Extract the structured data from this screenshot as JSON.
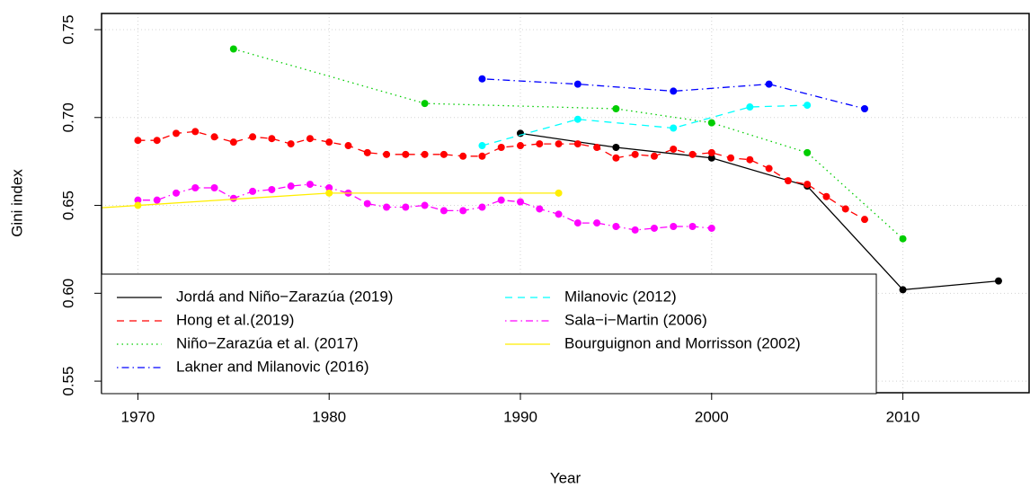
{
  "chart_data": {
    "type": "line",
    "x_label": "Year",
    "y_label": "Gini index",
    "xlim": [
      1968.1,
      2016.6
    ],
    "ylim": [
      0.5434,
      0.7592
    ],
    "xticks": [
      1970,
      1980,
      1990,
      2000,
      2010
    ],
    "yticks": [
      0.55,
      {
        "value": 0.6,
        "label": "0.60"
      },
      0.65,
      {
        "value": 0.7,
        "label": "0.70"
      },
      0.75
    ],
    "grid": true,
    "legend": "bottomleft",
    "series": [
      {
        "name": "Jordá and Niño−Zarazúa (2019)",
        "color": "#000000",
        "linestyle": "solid",
        "x": [
          1990,
          1995,
          2000,
          2005,
          2010,
          2015
        ],
        "values": [
          0.691,
          0.683,
          0.677,
          0.661,
          0.602,
          0.607
        ]
      },
      {
        "name": "Hong et al.(2019)",
        "color": "#ff0000",
        "linestyle": "dashed",
        "x": [
          1970,
          1971,
          1972,
          1973,
          1974,
          1975,
          1976,
          1977,
          1978,
          1979,
          1980,
          1981,
          1982,
          1983,
          1984,
          1985,
          1986,
          1987,
          1988,
          1989,
          1990,
          1991,
          1992,
          1993,
          1994,
          1995,
          1996,
          1997,
          1998,
          1999,
          2000,
          2001,
          2002,
          2003,
          2004,
          2005,
          2006,
          2007,
          2008
        ],
        "values": [
          0.687,
          0.687,
          0.691,
          0.692,
          0.689,
          0.686,
          0.689,
          0.688,
          0.685,
          0.688,
          0.686,
          0.684,
          0.68,
          0.679,
          0.679,
          0.679,
          0.679,
          0.678,
          0.678,
          0.683,
          0.684,
          0.685,
          0.685,
          0.685,
          0.683,
          0.677,
          0.679,
          0.678,
          0.682,
          0.679,
          0.68,
          0.677,
          0.676,
          0.671,
          0.664,
          0.662,
          0.655,
          0.648,
          0.642
        ]
      },
      {
        "name": "Niño−Zarazúa et al. (2017)",
        "color": "#00cd00",
        "linestyle": "dotted",
        "x": [
          1975,
          1985,
          1995,
          2000,
          2005,
          2010
        ],
        "values": [
          0.739,
          0.708,
          0.705,
          0.697,
          0.68,
          0.631
        ]
      },
      {
        "name": "Lakner and Milanovic (2016)",
        "color": "#0000ff",
        "linestyle": "dotdash",
        "x": [
          1988,
          1993,
          1998,
          2003,
          2008
        ],
        "values": [
          0.722,
          0.719,
          0.715,
          0.719,
          0.705
        ]
      },
      {
        "name": "Milanovic (2012)",
        "color": "#00ffff",
        "linestyle": "dashed",
        "x": [
          1988,
          1993,
          1998,
          2002,
          2005
        ],
        "values": [
          0.684,
          0.699,
          0.694,
          0.706,
          0.707
        ]
      },
      {
        "name": "Sala−i−Martin (2006)",
        "color": "#ff00ff",
        "linestyle": "dotdash",
        "x": [
          1970,
          1971,
          1972,
          1973,
          1974,
          1975,
          1976,
          1977,
          1978,
          1979,
          1980,
          1981,
          1982,
          1983,
          1984,
          1985,
          1986,
          1987,
          1988,
          1989,
          1990,
          1991,
          1992,
          1993,
          1994,
          1995,
          1996,
          1997,
          1998,
          1999,
          2000
        ],
        "values": [
          0.653,
          0.653,
          0.657,
          0.66,
          0.66,
          0.654,
          0.658,
          0.659,
          0.661,
          0.662,
          0.66,
          0.657,
          0.651,
          0.649,
          0.649,
          0.65,
          0.647,
          0.647,
          0.649,
          0.653,
          0.652,
          0.648,
          0.645,
          0.64,
          0.64,
          0.638,
          0.636,
          0.637,
          0.638,
          0.638,
          0.637
        ]
      },
      {
        "name": "Bourguignon and Morrisson (2002)",
        "color": "#ffee00",
        "linestyle": "solid",
        "x": [
          1960,
          1970,
          1980,
          1992
        ],
        "values": [
          0.643,
          0.65,
          0.657,
          0.657
        ]
      }
    ]
  }
}
